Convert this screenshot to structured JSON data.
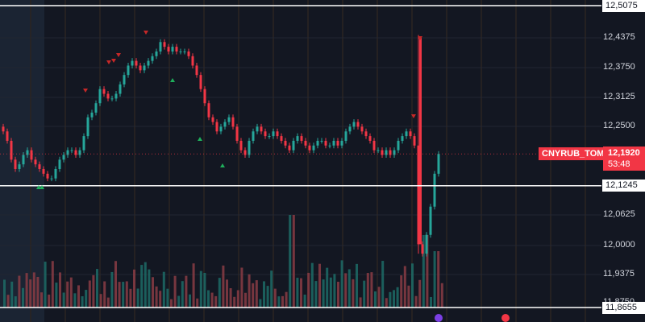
{
  "symbol": "CNYRUB_TOM",
  "price_badge": {
    "price": "12,1920",
    "countdown": "53:48"
  },
  "price_axis": {
    "labels": [
      "12,4375",
      "12,3750",
      "12,3125",
      "12,2500",
      "12,0625",
      "12,0000",
      "11,9375",
      "11,8750"
    ]
  },
  "horizontal_lines": [
    {
      "label": "12,5075"
    },
    {
      "label": "12,1245"
    },
    {
      "label": "11,8655"
    }
  ],
  "colors": {
    "background": "#131722",
    "up": "#26a69a",
    "down": "#f23645",
    "sell_marker": "#c62828",
    "buy_marker": "#1fae5b",
    "lines": "#ffffff"
  },
  "chart_data": {
    "type": "candlestick",
    "ylim": [
      11.8655,
      12.5075
    ],
    "current_price": 12.192,
    "horizontal_levels": [
      12.5075,
      12.1245,
      11.8655
    ],
    "candles_close": [
      12.24,
      12.22,
      12.18,
      12.16,
      12.17,
      12.19,
      12.2,
      12.18,
      12.17,
      12.16,
      12.15,
      12.14,
      12.14,
      12.16,
      12.18,
      12.19,
      12.2,
      12.2,
      12.19,
      12.2,
      12.23,
      12.27,
      12.28,
      12.3,
      12.33,
      12.32,
      12.31,
      12.31,
      12.32,
      12.34,
      12.36,
      12.38,
      12.39,
      12.38,
      12.37,
      12.38,
      12.39,
      12.4,
      12.41,
      12.43,
      12.42,
      12.41,
      12.42,
      12.41,
      12.41,
      12.41,
      12.4,
      12.38,
      12.36,
      12.33,
      12.3,
      12.27,
      12.26,
      12.24,
      12.25,
      12.26,
      12.27,
      12.25,
      12.22,
      12.2,
      12.19,
      12.22,
      12.24,
      12.25,
      12.24,
      12.23,
      12.23,
      12.24,
      12.23,
      12.22,
      12.21,
      12.2,
      12.22,
      12.23,
      12.22,
      12.21,
      12.2,
      12.21,
      12.22,
      12.22,
      12.21,
      12.21,
      12.22,
      12.21,
      12.22,
      12.24,
      12.25,
      12.26,
      12.25,
      12.24,
      12.23,
      12.22,
      12.2,
      12.2,
      12.19,
      12.2,
      12.19,
      12.2,
      12.22,
      12.23,
      12.24,
      12.23,
      12.21,
      12.0,
      11.98,
      12.02,
      12.08,
      12.15,
      12.192
    ]
  }
}
